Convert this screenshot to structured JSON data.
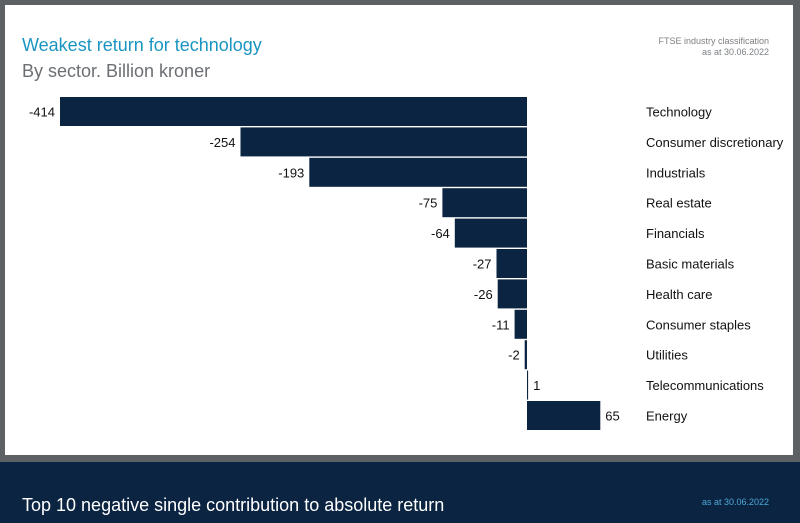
{
  "header": {
    "title": "Weakest return for technology",
    "subtitle": "By sector. Billion kroner",
    "source_line1": "FTSE industry classification",
    "source_line2": "as at 30.06.2022"
  },
  "footer": {
    "title": "Top 10 negative single contribution to absolute return",
    "date": "as at 30.06.2022"
  },
  "colors": {
    "bar": "#0b2442",
    "title": "#1a95c1",
    "footer_bg": "#0b2442"
  },
  "chart_data": {
    "type": "bar",
    "orientation": "horizontal",
    "categories": [
      "Technology",
      "Consumer discretionary",
      "Industrials",
      "Real estate",
      "Financials",
      "Basic materials",
      "Health care",
      "Consumer staples",
      "Utilities",
      "Telecommunications",
      "Energy"
    ],
    "values": [
      -414,
      -254,
      -193,
      -75,
      -64,
      -27,
      -26,
      -11,
      -2,
      1,
      65
    ],
    "labels": [
      "-414",
      "-254",
      "-193",
      "-75",
      "-64",
      "-27",
      "-26",
      "-11",
      "-2",
      "1",
      "65"
    ],
    "grid": false
  }
}
